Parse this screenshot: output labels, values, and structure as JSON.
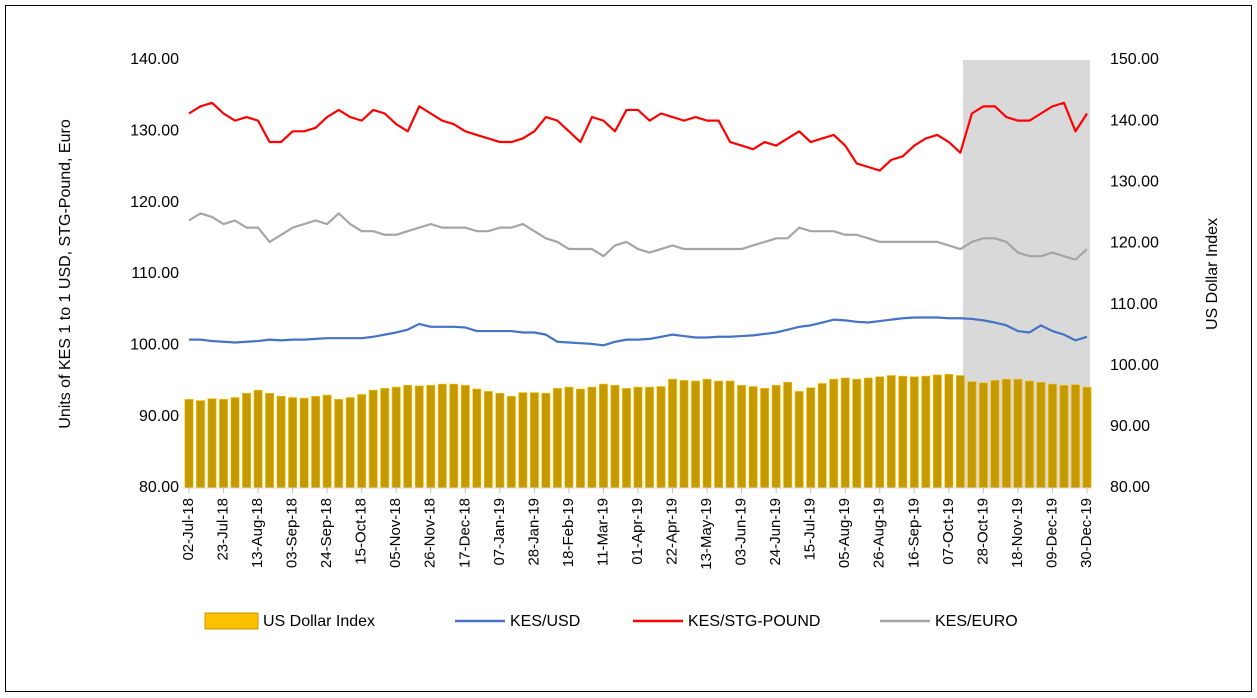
{
  "chart_data": {
    "type": "combo",
    "y1label": "Units of KES 1 to 1 USD, STG-Pound, Euro",
    "y2label": "US Dollar Index",
    "categories": [
      "02-Jul-18",
      null,
      null,
      "23-Jul-18",
      null,
      null,
      "13-Aug-18",
      null,
      null,
      "03-Sep-18",
      null,
      null,
      "24-Sep-18",
      null,
      null,
      "15-Oct-18",
      null,
      null,
      "05-Nov-18",
      null,
      null,
      "26-Nov-18",
      null,
      null,
      "17-Dec-18",
      null,
      null,
      "07-Jan-19",
      null,
      null,
      "28-Jan-19",
      null,
      null,
      "18-Feb-19",
      null,
      null,
      "11-Mar-19",
      null,
      null,
      "01-Apr-19",
      null,
      null,
      "22-Apr-19",
      null,
      null,
      "13-May-19",
      null,
      null,
      "03-Jun-19",
      null,
      null,
      "24-Jun-19",
      null,
      null,
      "15-Jul-19",
      null,
      null,
      "05-Aug-19",
      null,
      null,
      "26-Aug-19",
      null,
      null,
      "16-Sep-19",
      null,
      null,
      "07-Oct-19",
      null,
      null,
      "28-Oct-19",
      null,
      null,
      "18-Nov-19",
      null,
      null,
      "09-Dec-19",
      null,
      null,
      "30-Dec-19"
    ],
    "series": [
      {
        "name": "US Dollar Index",
        "type": "bar",
        "axis": "y2",
        "color": "#c49a00",
        "legend_color": "#ffc000",
        "values": [
          94.5,
          94.3,
          94.6,
          94.5,
          94.8,
          95.5,
          96,
          95.5,
          95,
          94.8,
          94.7,
          95,
          95.2,
          94.5,
          94.8,
          95.3,
          96,
          96.3,
          96.5,
          96.8,
          96.7,
          96.8,
          97,
          97,
          96.8,
          96.2,
          95.8,
          95.5,
          95,
          95.6,
          95.6,
          95.5,
          96.3,
          96.5,
          96.2,
          96.5,
          97,
          96.8,
          96.3,
          96.5,
          96.5,
          96.6,
          97.8,
          97.6,
          97.5,
          97.8,
          97.5,
          97.5,
          96.8,
          96.6,
          96.3,
          96.8,
          97.3,
          95.8,
          96.4,
          97.1,
          97.8,
          98,
          97.8,
          98,
          98.2,
          98.4,
          98.3,
          98.2,
          98.3,
          98.5,
          98.6,
          98.4,
          97.4,
          97.2,
          97.6,
          97.8,
          97.8,
          97.5,
          97.3,
          97,
          96.8,
          96.9,
          96.5
        ]
      },
      {
        "name": "KES/USD",
        "type": "line",
        "color": "#4472c4",
        "values": [
          100.8,
          100.8,
          100.6,
          100.5,
          100.4,
          100.5,
          100.6,
          100.8,
          100.7,
          100.8,
          100.8,
          100.9,
          101,
          101,
          101,
          101,
          101.2,
          101.5,
          101.8,
          102.2,
          103,
          102.6,
          102.6,
          102.6,
          102.5,
          102,
          102,
          102,
          102,
          101.8,
          101.8,
          101.5,
          100.5,
          100.4,
          100.3,
          100.2,
          100,
          100.5,
          100.8,
          100.8,
          100.9,
          101.2,
          101.5,
          101.3,
          101.1,
          101.1,
          101.2,
          101.2,
          101.3,
          101.4,
          101.6,
          101.8,
          102.2,
          102.6,
          102.8,
          103.2,
          103.6,
          103.5,
          103.3,
          103.2,
          103.4,
          103.6,
          103.8,
          103.9,
          103.9,
          103.9,
          103.8,
          103.8,
          103.7,
          103.5,
          103.2,
          102.8,
          102,
          101.8,
          102.8,
          102,
          101.5,
          100.7,
          101.2
        ]
      },
      {
        "name": "KES/STG-POUND",
        "type": "line",
        "color": "#ff0000",
        "values": [
          132.5,
          133.5,
          134,
          132.5,
          131.5,
          132,
          131.5,
          128.5,
          128.5,
          130,
          130,
          130.5,
          132,
          133,
          132,
          131.5,
          133,
          132.5,
          131,
          130,
          133.5,
          132.5,
          131.5,
          131,
          130,
          129.5,
          129,
          128.5,
          128.5,
          129,
          130,
          132,
          131.5,
          130,
          128.5,
          132,
          131.5,
          130,
          133,
          133,
          131.5,
          132.5,
          132,
          131.5,
          132,
          131.5,
          131.5,
          128.5,
          128,
          127.5,
          128.5,
          128,
          129,
          130,
          128.5,
          129,
          129.5,
          128,
          125.5,
          125,
          124.5,
          126,
          126.5,
          128,
          129,
          129.5,
          128.5,
          127,
          132.5,
          133.5,
          133.5,
          132,
          131.5,
          131.5,
          132.5,
          133.5,
          134,
          130,
          132.5
        ]
      },
      {
        "name": "KES/EURO",
        "type": "line",
        "color": "#a5a5a5",
        "values": [
          117.5,
          118.5,
          118,
          117,
          117.5,
          116.5,
          116.5,
          114.5,
          115.5,
          116.5,
          117,
          117.5,
          117,
          118.5,
          117,
          116,
          116,
          115.5,
          115.5,
          116,
          116.5,
          117,
          116.5,
          116.5,
          116.5,
          116,
          116,
          116.5,
          116.5,
          117,
          116,
          115,
          114.5,
          113.5,
          113.5,
          113.5,
          112.5,
          114,
          114.5,
          113.5,
          113,
          113.5,
          114,
          113.5,
          113.5,
          113.5,
          113.5,
          113.5,
          113.5,
          114,
          114.5,
          115,
          115,
          116.5,
          116,
          116,
          116,
          115.5,
          115.5,
          115,
          114.5,
          114.5,
          114.5,
          114.5,
          114.5,
          114.5,
          114,
          113.5,
          114.5,
          115,
          115,
          114.5,
          113,
          112.5,
          112.5,
          113,
          112.5,
          112,
          113.5
        ]
      }
    ],
    "ylim": [
      80,
      140
    ],
    "yticks": [
      {
        "value": 80,
        "label": "80.00"
      },
      {
        "value": 90,
        "label": "90.00"
      },
      {
        "value": 100,
        "label": "100.00"
      },
      {
        "value": 110,
        "label": "110.00"
      },
      {
        "value": 120,
        "label": "120.00"
      },
      {
        "value": 130,
        "label": "130.00"
      },
      {
        "value": 140,
        "label": "140.00"
      }
    ],
    "y2lim": [
      80,
      150
    ],
    "y2ticks": [
      {
        "value": 80,
        "label": "80.00"
      },
      {
        "value": 90,
        "label": "90.00"
      },
      {
        "value": 100,
        "label": "100.00"
      },
      {
        "value": 110,
        "label": "110.00"
      },
      {
        "value": 120,
        "label": "120.00"
      },
      {
        "value": 130,
        "label": "130.00"
      },
      {
        "value": 140,
        "label": "140.00"
      },
      {
        "value": 150,
        "label": "150.00"
      }
    ],
    "grid": false,
    "legend": "bottom"
  }
}
